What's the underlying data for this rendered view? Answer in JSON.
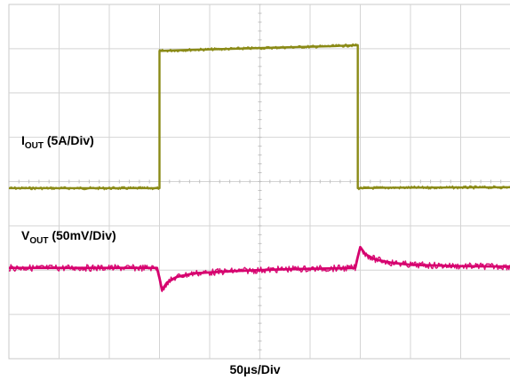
{
  "chart_data": {
    "type": "line",
    "title": "",
    "x_axis": {
      "label": "50µs/Div",
      "divisions": 10,
      "grid": true
    },
    "y_axis": {
      "divisions": 8,
      "grid": true
    },
    "series": [
      {
        "name_main": "I",
        "name_sub": "OUT",
        "name_rest": " (5A/Div)",
        "color": "#8a8a16",
        "units": "divisions",
        "points": [
          [
            0.0,
            3.85
          ],
          [
            3.0,
            3.85
          ],
          [
            3.0,
            6.95
          ],
          [
            3.5,
            6.97
          ],
          [
            4.5,
            7.0
          ],
          [
            5.5,
            7.03
          ],
          [
            6.5,
            7.06
          ],
          [
            6.95,
            7.08
          ],
          [
            6.95,
            3.85
          ],
          [
            7.5,
            3.86
          ],
          [
            10.0,
            3.87
          ]
        ]
      },
      {
        "name_main": "V",
        "name_sub": "OUT",
        "name_rest": " (50mV/Div)",
        "color": "#d6006e",
        "units": "divisions",
        "points": [
          [
            0.0,
            2.05
          ],
          [
            2.95,
            2.05
          ],
          [
            3.0,
            1.82
          ],
          [
            3.05,
            1.55
          ],
          [
            3.15,
            1.72
          ],
          [
            3.35,
            1.85
          ],
          [
            3.7,
            1.93
          ],
          [
            4.5,
            1.98
          ],
          [
            5.5,
            2.02
          ],
          [
            6.5,
            2.04
          ],
          [
            6.9,
            2.05
          ],
          [
            6.95,
            2.3
          ],
          [
            7.0,
            2.52
          ],
          [
            7.1,
            2.36
          ],
          [
            7.3,
            2.24
          ],
          [
            7.6,
            2.17
          ],
          [
            8.0,
            2.12
          ],
          [
            9.0,
            2.09
          ],
          [
            10.0,
            2.08
          ]
        ]
      }
    ]
  }
}
